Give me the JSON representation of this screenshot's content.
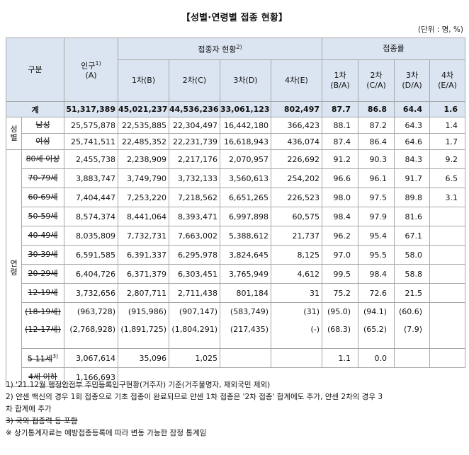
{
  "title": "【성별·연령별 접종 현황】",
  "unit": "(단위 : 명, %)",
  "headers": {
    "category": "구분",
    "population": "인구",
    "population_note": "1)",
    "population_code": "(A)",
    "vaccinated": "접종자 현황",
    "vaccinated_note": "2)",
    "rate": "접종률",
    "dose1": "1차(B)",
    "dose2": "2차(C)",
    "dose3": "3차(D)",
    "dose4": "4차(E)",
    "rate1_a": "1차",
    "rate1_b": "(B/A)",
    "rate2_a": "2차",
    "rate2_b": "(C/A)",
    "rate3_a": "3차",
    "rate3_b": "(D/A)",
    "rate4_a": "4차",
    "rate4_b": "(E/A)"
  },
  "total": {
    "label": "계",
    "pop": "51,317,389",
    "d1": "45,021,237",
    "d2": "44,536,236",
    "d3": "33,061,123",
    "d4": "802,497",
    "r1": "87.7",
    "r2": "86.8",
    "r3": "64.4",
    "r4": "1.6"
  },
  "gender": {
    "label": "성별",
    "rows": [
      {
        "label": "남성",
        "pop": "25,575,878",
        "d1": "22,535,885",
        "d2": "22,304,497",
        "d3": "16,442,180",
        "d4": "366,423",
        "r1": "88.1",
        "r2": "87.2",
        "r3": "64.3",
        "r4": "1.4"
      },
      {
        "label": "여성",
        "pop": "25,741,511",
        "d1": "22,485,352",
        "d2": "22,231,739",
        "d3": "16,618,943",
        "d4": "436,074",
        "r1": "87.4",
        "r2": "86.4",
        "r3": "64.6",
        "r4": "1.7"
      }
    ]
  },
  "age": {
    "label": "연령",
    "rows": [
      {
        "label": "80세 이상",
        "pop": "2,455,738",
        "d1": "2,238,909",
        "d2": "2,217,176",
        "d3": "2,070,957",
        "d4": "226,692",
        "r1": "91.2",
        "r2": "90.3",
        "r3": "84.3",
        "r4": "9.2"
      },
      {
        "label": "70-79세",
        "pop": "3,883,747",
        "d1": "3,749,790",
        "d2": "3,732,133",
        "d3": "3,560,613",
        "d4": "254,202",
        "r1": "96.6",
        "r2": "96.1",
        "r3": "91.7",
        "r4": "6.5"
      },
      {
        "label": "60-69세",
        "pop": "7,404,447",
        "d1": "7,253,220",
        "d2": "7,218,562",
        "d3": "6,651,265",
        "d4": "226,523",
        "r1": "98.0",
        "r2": "97.5",
        "r3": "89.8",
        "r4": "3.1"
      },
      {
        "label": "50-59세",
        "pop": "8,574,374",
        "d1": "8,441,064",
        "d2": "8,393,471",
        "d3": "6,997,898",
        "d4": "60,575",
        "r1": "98.4",
        "r2": "97.9",
        "r3": "81.6",
        "r4": ""
      },
      {
        "label": "40-49세",
        "pop": "8,035,809",
        "d1": "7,732,731",
        "d2": "7,663,002",
        "d3": "5,388,612",
        "d4": "21,737",
        "r1": "96.2",
        "r2": "95.4",
        "r3": "67.1",
        "r4": ""
      },
      {
        "label": "30-39세",
        "pop": "6,591,585",
        "d1": "6,391,337",
        "d2": "6,295,978",
        "d3": "3,824,645",
        "d4": "8,125",
        "r1": "97.0",
        "r2": "95.5",
        "r3": "58.0",
        "r4": ""
      },
      {
        "label": "20-29세",
        "pop": "6,404,726",
        "d1": "6,371,379",
        "d2": "6,303,451",
        "d3": "3,765,949",
        "d4": "4,612",
        "r1": "99.5",
        "r2": "98.4",
        "r3": "58.8",
        "r4": ""
      },
      {
        "label": "12-19세",
        "pop": "3,732,656",
        "d1": "2,807,711",
        "d2": "2,711,438",
        "d3": "801,184",
        "d4": "31",
        "r1": "75.2",
        "r2": "72.6",
        "r3": "21.5",
        "r4": ""
      }
    ],
    "sub": {
      "label_a": "(18-19세)",
      "label_b": "(12-17세)",
      "a": {
        "pop": "(963,728)",
        "d1": "(915,986)",
        "d2": "(907,147)",
        "d3": "(583,749)",
        "d4": "(31)",
        "r1": "(95.0)",
        "r2": "(94.1)",
        "r3": "(60.6)"
      },
      "b": {
        "pop": "(2,768,928)",
        "d1": "(1,891,725)",
        "d2": "(1,804,291)",
        "d3": "(217,435)",
        "d4": "(-)",
        "r1": "(68.3)",
        "r2": "(65.2)",
        "r3": "(7.9)"
      }
    },
    "kids": {
      "label": "5-11세",
      "note": "3)",
      "pop": "3,067,614",
      "d1": "35,096",
      "d2": "1,025",
      "r1": "1.1",
      "r2": "0.0"
    },
    "under4": {
      "label": "4세 이하",
      "pop": "1,166,693"
    }
  },
  "notes": [
    "1) '21.12월 행정안전부 주민등록인구현황(거주자) 기준(거주불명자, 재외국민 제외)",
    "2) 얀센 백신의 경우 1회 접종으로 기초 접종이 완료되므로 얀센 1차 접종은 '2차 접종' 합계에도 추가, 얀센 2차의 경우 3",
    "차 합계에 추가",
    "3) 국외 접종력 등 포함",
    "※ 상기통계자료는 예방접종등록에 따라 변동 가능한 잠정 통계임"
  ]
}
